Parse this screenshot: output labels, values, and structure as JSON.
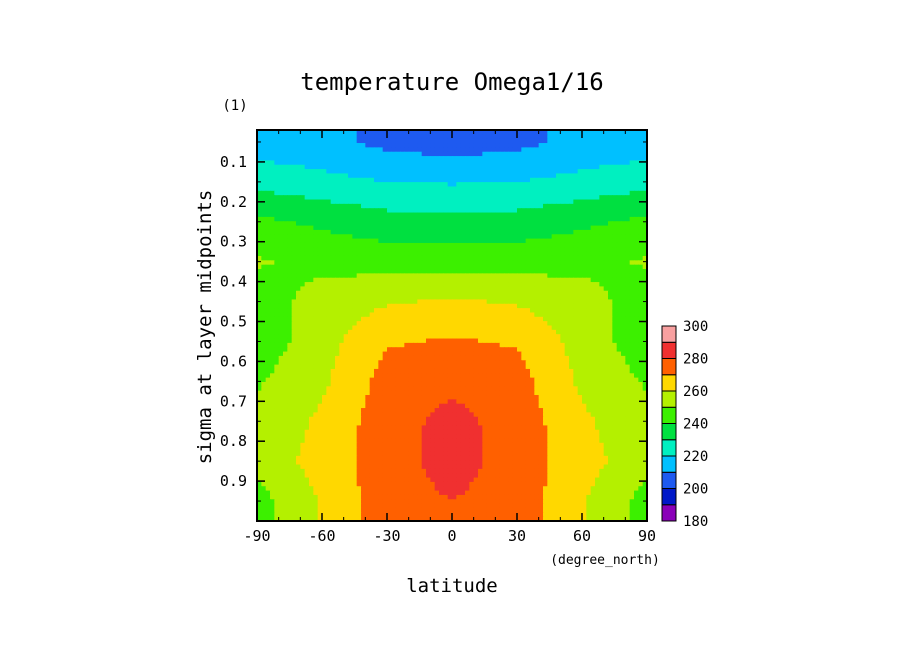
{
  "chart_data": {
    "type": "heatmap",
    "title": "temperature Omega1/16",
    "xlabel": "latitude",
    "xunit": "(degree_north)",
    "ylabel": "sigma at layer midpoints",
    "yunit": "(1)",
    "xlim": [
      -90,
      90
    ],
    "ylim": [
      1.0,
      0.02
    ],
    "xticks": [
      -90,
      -60,
      -30,
      0,
      30,
      60,
      90
    ],
    "xtick_labels": [
      "-90",
      "-60",
      "-30",
      "0",
      "30",
      "60",
      "90"
    ],
    "yticks": [
      0.1,
      0.2,
      0.3,
      0.4,
      0.5,
      0.6,
      0.7,
      0.8,
      0.9
    ],
    "ytick_labels": [
      "0.1",
      "0.2",
      "0.3",
      "0.4",
      "0.5",
      "0.6",
      "0.7",
      "0.8",
      "0.9"
    ],
    "colorbar": {
      "levels": [
        180,
        190,
        200,
        210,
        220,
        230,
        240,
        250,
        260,
        270,
        280,
        290,
        300
      ],
      "labels": [
        "180",
        "200",
        "220",
        "240",
        "260",
        "280",
        "300"
      ],
      "colors": [
        "#8a00b8",
        "#0018c8",
        "#1e5af0",
        "#00c0ff",
        "#00f0c0",
        "#00e040",
        "#3cf000",
        "#b4f000",
        "#ffd800",
        "#ff6000",
        "#f03030",
        "#f8a0a0"
      ]
    },
    "x": [
      -90,
      -60,
      -30,
      0,
      30,
      60,
      90
    ],
    "y": [
      0.05,
      0.15,
      0.25,
      0.35,
      0.45,
      0.55,
      0.65,
      0.75,
      0.85,
      0.95
    ],
    "z": [
      [
        214,
        213,
        207,
        205,
        207,
        213,
        214
      ],
      [
        227,
        223,
        220,
        219,
        220,
        223,
        227
      ],
      [
        242,
        238,
        234,
        234,
        234,
        238,
        242
      ],
      [
        251,
        247,
        246,
        246,
        246,
        247,
        251
      ],
      [
        245,
        254,
        259,
        261,
        259,
        254,
        245
      ],
      [
        244,
        256,
        269,
        271,
        269,
        256,
        244
      ],
      [
        249,
        258,
        274,
        278,
        274,
        258,
        249
      ],
      [
        252,
        262,
        276,
        283,
        276,
        262,
        252
      ],
      [
        254,
        264,
        276,
        284,
        276,
        264,
        254
      ],
      [
        246,
        261,
        276,
        280,
        276,
        261,
        246
      ]
    ]
  }
}
